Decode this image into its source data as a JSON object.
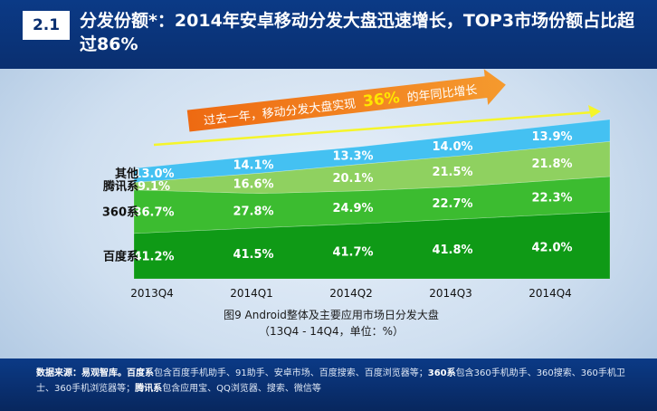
{
  "header": {
    "section_number": "2.1",
    "title": "分发份额*：2014年安卓移动分发大盘迅速增长，TOP3市场份额占比超过86%"
  },
  "callout": {
    "prefix": "过去一年，移动分发大盘实现",
    "highlight": "36%",
    "suffix": "的年同比增长"
  },
  "chart_data": {
    "type": "area",
    "stacked": true,
    "categories": [
      "2013Q4",
      "2014Q1",
      "2014Q2",
      "2014Q3",
      "2014Q4"
    ],
    "series": [
      {
        "name": "百度系",
        "values": [
          41.2,
          41.5,
          41.7,
          41.8,
          42.0
        ],
        "color": "#0f9a16"
      },
      {
        "name": "360系",
        "values": [
          36.7,
          27.8,
          24.9,
          22.7,
          22.3
        ],
        "color": "#3cbc30"
      },
      {
        "name": "腾讯系",
        "values": [
          9.1,
          16.6,
          20.1,
          21.5,
          21.8
        ],
        "color": "#8fd160"
      },
      {
        "name": "其他",
        "values": [
          13.0,
          14.1,
          13.3,
          14.0,
          13.9
        ],
        "color": "#44c1f2"
      }
    ],
    "value_suffix": "%",
    "caption": "图9 Android整体及主要应用市场日分发大盘",
    "subcaption": "（13Q4 - 14Q4，单位：%）"
  },
  "source": {
    "label": "数据来源：易观智库。",
    "baidu_name": "百度系",
    "baidu_desc": "包含百度手机助手、91助手、安卓市场、百度搜索、百度浏览器等；",
    "q360_name": "360系",
    "q360_desc": "包含360手机助手、360搜索、360手机卫士、360手机浏览器等；",
    "tencent_name": "腾讯系",
    "tencent_desc": "包含应用宝、QQ浏览器、搜索、微信等"
  },
  "colors": {
    "header_bg": "#0a2f70",
    "arrow_orange": "#f47b20",
    "highlight_yellow": "#ffe600",
    "trend_line": "#f5f52a"
  }
}
